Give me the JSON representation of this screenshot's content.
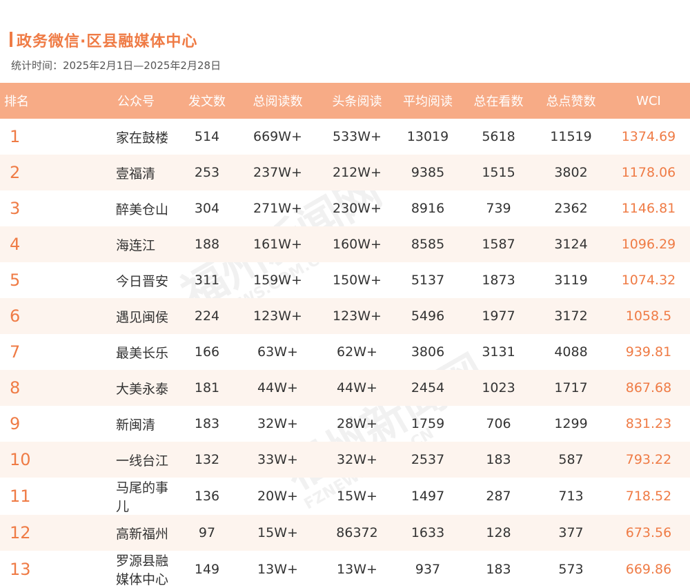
{
  "header": {
    "title": "政务微信·区县融媒体中心",
    "period": "统计时间：2025年2月1日—2025年2月28日"
  },
  "columns": [
    "排名",
    "公众号",
    "发文数",
    "总阅读数",
    "头条阅读",
    "平均阅读",
    "总在看数",
    "总点赞数",
    "WCI"
  ],
  "rows": [
    {
      "rank": "1",
      "name": "家在鼓楼",
      "posts": "514",
      "total_reads": "669W+",
      "headline_reads": "533W+",
      "avg_reads": "13019",
      "watching": "5618",
      "likes": "11519",
      "wci": "1374.69"
    },
    {
      "rank": "2",
      "name": "壹福清",
      "posts": "253",
      "total_reads": "237W+",
      "headline_reads": "212W+",
      "avg_reads": "9385",
      "watching": "1515",
      "likes": "3802",
      "wci": "1178.06"
    },
    {
      "rank": "3",
      "name": "醉美仓山",
      "posts": "304",
      "total_reads": "271W+",
      "headline_reads": "230W+",
      "avg_reads": "8916",
      "watching": "739",
      "likes": "2362",
      "wci": "1146.81"
    },
    {
      "rank": "4",
      "name": "海连江",
      "posts": "188",
      "total_reads": "161W+",
      "headline_reads": "160W+",
      "avg_reads": "8585",
      "watching": "1587",
      "likes": "3124",
      "wci": "1096.29"
    },
    {
      "rank": "5",
      "name": "今日晋安",
      "posts": "311",
      "total_reads": "159W+",
      "headline_reads": "150W+",
      "avg_reads": "5137",
      "watching": "1873",
      "likes": "3119",
      "wci": "1074.32"
    },
    {
      "rank": "6",
      "name": "遇见闽侯",
      "posts": "224",
      "total_reads": "123W+",
      "headline_reads": "123W+",
      "avg_reads": "5496",
      "watching": "1977",
      "likes": "3172",
      "wci": "1058.5"
    },
    {
      "rank": "7",
      "name": "最美长乐",
      "posts": "166",
      "total_reads": "63W+",
      "headline_reads": "62W+",
      "avg_reads": "3806",
      "watching": "3131",
      "likes": "4088",
      "wci": "939.81"
    },
    {
      "rank": "8",
      "name": "大美永泰",
      "posts": "181",
      "total_reads": "44W+",
      "headline_reads": "44W+",
      "avg_reads": "2454",
      "watching": "1023",
      "likes": "1717",
      "wci": "867.68"
    },
    {
      "rank": "9",
      "name": "新闽清",
      "posts": "183",
      "total_reads": "32W+",
      "headline_reads": "28W+",
      "avg_reads": "1759",
      "watching": "706",
      "likes": "1299",
      "wci": "831.23"
    },
    {
      "rank": "10",
      "name": "一线台江",
      "posts": "132",
      "total_reads": "33W+",
      "headline_reads": "32W+",
      "avg_reads": "2537",
      "watching": "183",
      "likes": "587",
      "wci": "793.22"
    },
    {
      "rank": "11",
      "name": "马尾的事儿",
      "posts": "136",
      "total_reads": "20W+",
      "headline_reads": "15W+",
      "avg_reads": "1497",
      "watching": "287",
      "likes": "713",
      "wci": "718.52"
    },
    {
      "rank": "12",
      "name": "高新福州",
      "posts": "97",
      "total_reads": "15W+",
      "headline_reads": "86372",
      "avg_reads": "1633",
      "watching": "128",
      "likes": "377",
      "wci": "673.56"
    },
    {
      "rank": "13",
      "name": "罗源县融媒体中心",
      "posts": "149",
      "total_reads": "13W+",
      "headline_reads": "13W+",
      "avg_reads": "937",
      "watching": "183",
      "likes": "573",
      "wci": "669.86"
    }
  ],
  "watermark": {
    "text": "福州新闻网",
    "url": "FZNEWS.COM.CN"
  },
  "colors": {
    "accent": "#ef7b45",
    "header_bg": "#f7ab86",
    "stripe": "#fdf4ee"
  }
}
